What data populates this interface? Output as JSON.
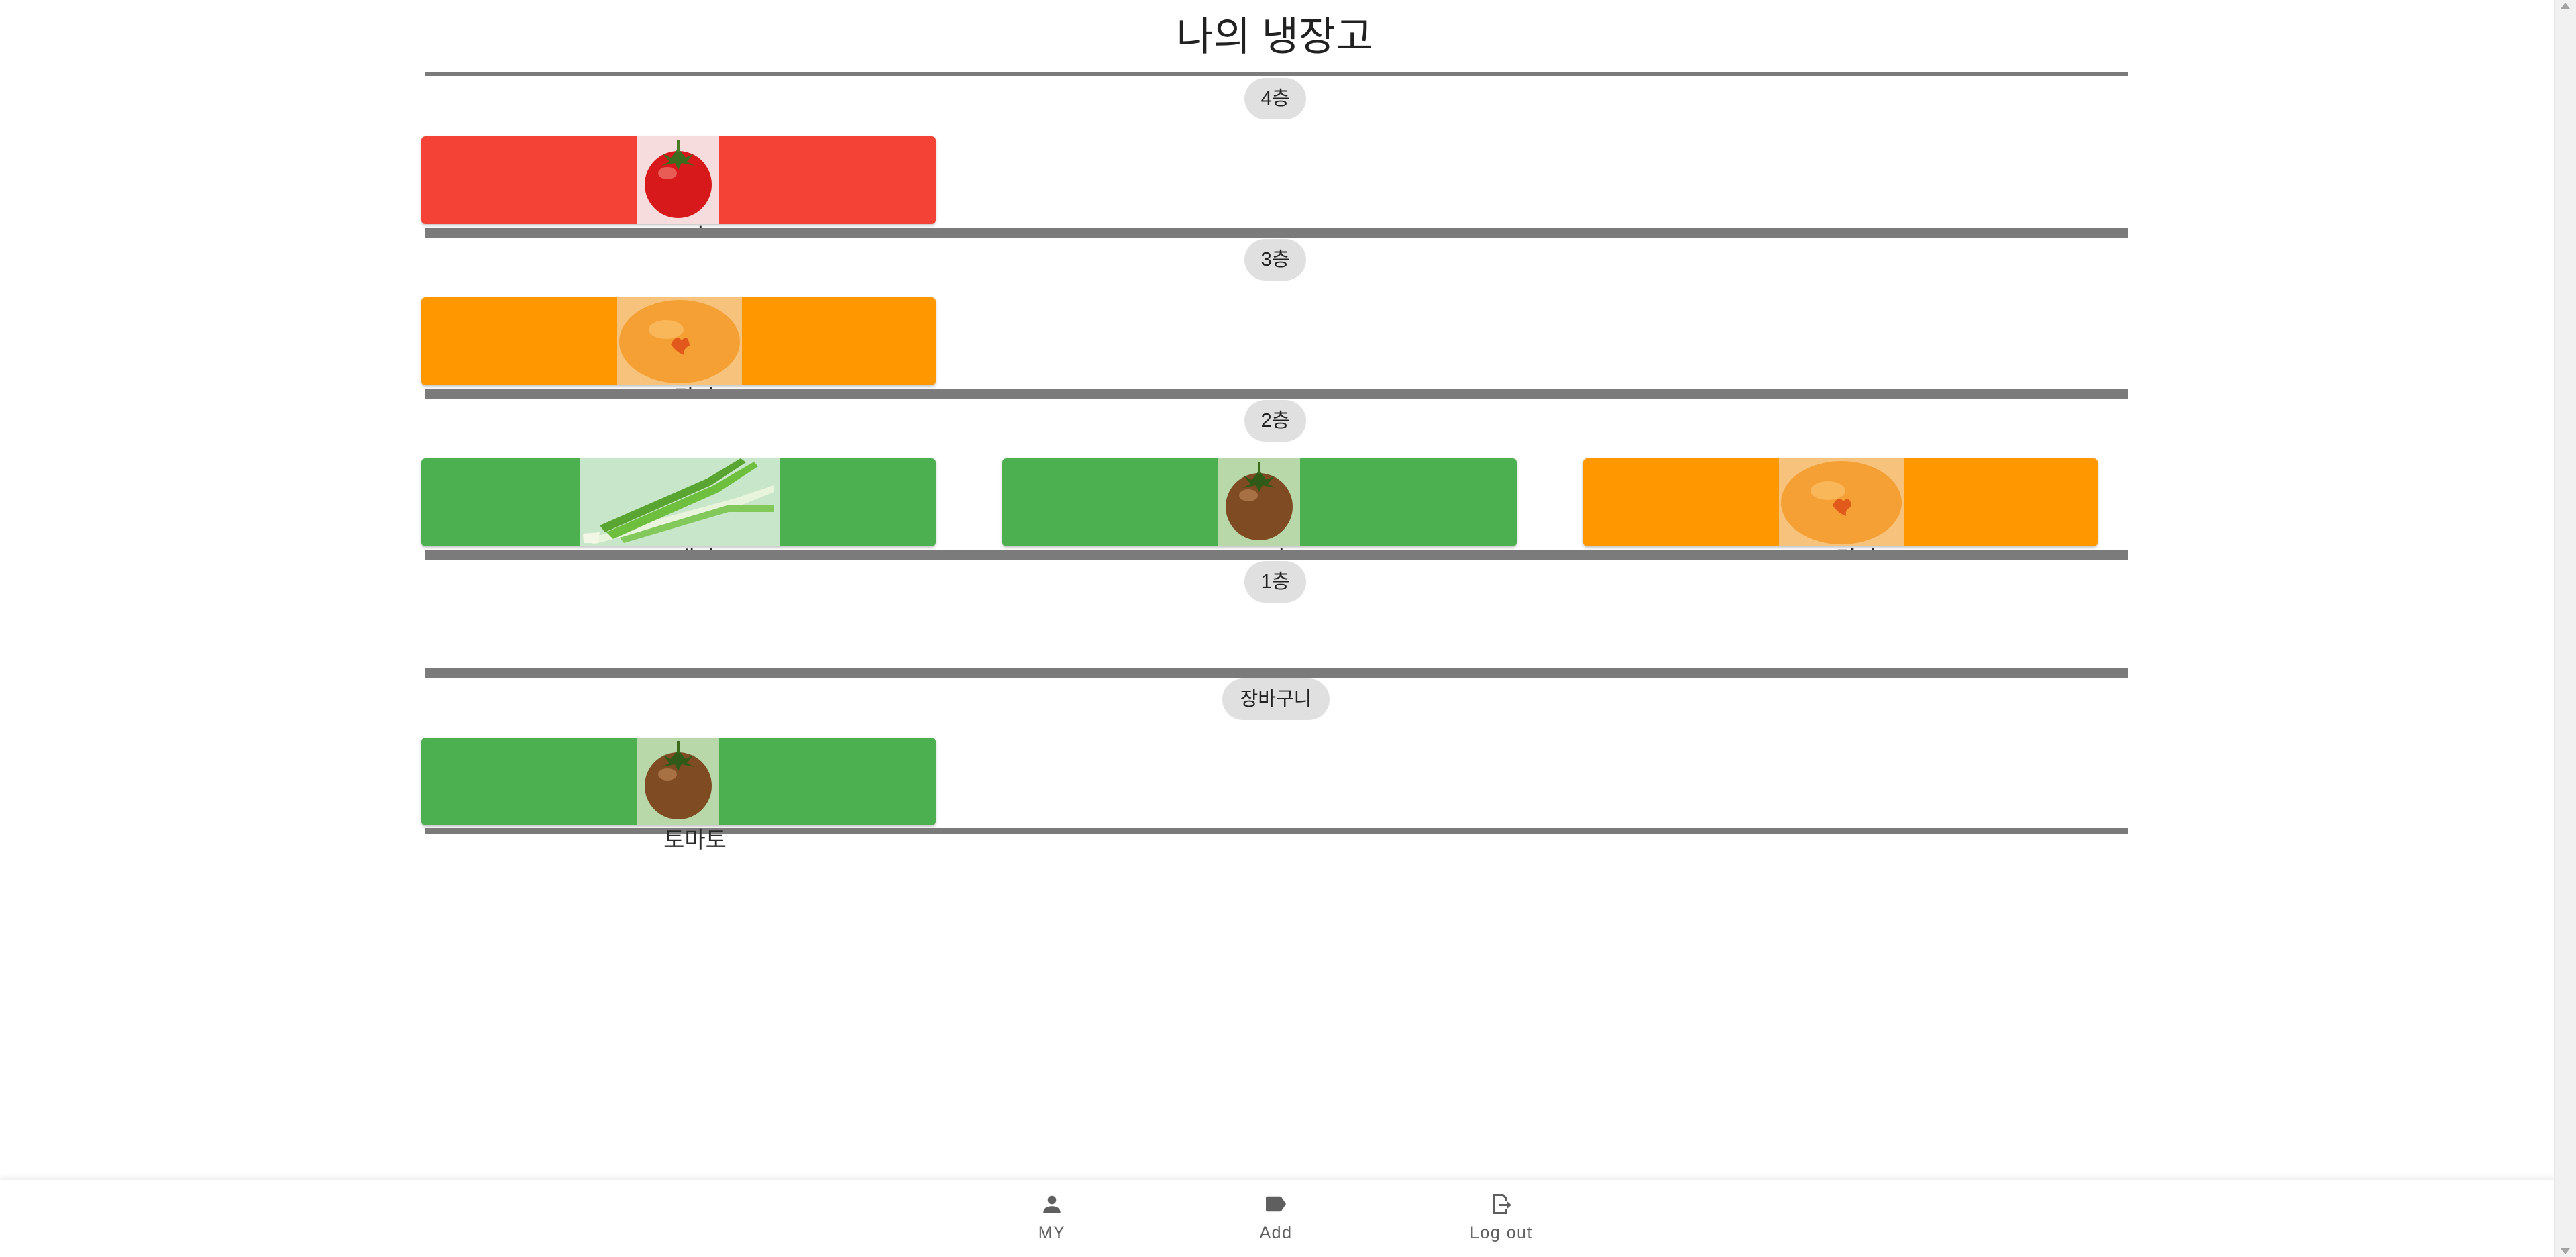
{
  "title": "나의 냉장고",
  "shelves": [
    {
      "name": "4층",
      "items": [
        {
          "name": "토마토",
          "status_color": "#f44336",
          "photo": "tomato-photo"
        }
      ]
    },
    {
      "name": "3층",
      "items": [
        {
          "name": "감자",
          "status_color": "#ff9800",
          "photo": "potato-photo"
        }
      ]
    },
    {
      "name": "2층",
      "items": [
        {
          "name": "대파",
          "status_color": "#4caf50",
          "photo": "green-onion-photo"
        },
        {
          "name": "토마토",
          "status_color": "#4caf50",
          "photo": "tomato-photo"
        },
        {
          "name": "감자",
          "status_color": "#ff9800",
          "photo": "potato-photo"
        }
      ]
    },
    {
      "name": "1층",
      "items": []
    }
  ],
  "basket": {
    "name": "장바구니",
    "items": [
      {
        "name": "토마토",
        "status_color": "#4caf50",
        "photo": "tomato-photo"
      }
    ]
  },
  "nav": [
    {
      "label": "MY",
      "icon": "person-icon"
    },
    {
      "label": "Add",
      "icon": "label-tag-icon"
    },
    {
      "label": "Log out",
      "icon": "logout-icon"
    }
  ],
  "colors": {
    "red": "#f44336",
    "orange": "#ff9800",
    "green": "#4caf50",
    "divider": "#7b7b7b",
    "chip": "#e0e0e0"
  }
}
